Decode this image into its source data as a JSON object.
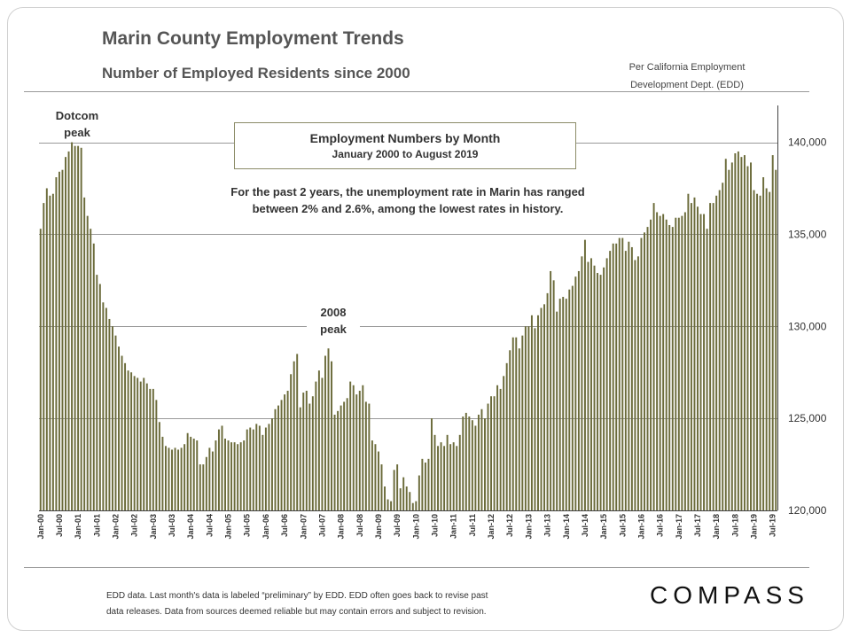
{
  "header": {
    "title": "Marin County Employment Trends",
    "subtitle": "Number of Employed  Residents since 2000",
    "source_line1": "Per California Employment",
    "source_line2": "Development Dept. (EDD)"
  },
  "annotations": {
    "box_title": "Employment Numbers by Month",
    "box_subtitle": "January 2000 to August 2019",
    "note_line1": "For the past 2 years, the unemployment rate in Marin has ranged",
    "note_line2": "between 2% and 2.6%, among the lowest rates in history.",
    "dotcom_line1": "Dotcom",
    "dotcom_line2": "peak",
    "peak2008_line1": "2008",
    "peak2008_line2": "peak"
  },
  "footer": {
    "line1": "EDD data. Last month's data is labeled “preliminary” by EDD. EDD often goes back to revise past",
    "line2": "data releases. Data from sources deemed reliable but may contain  errors and subject to revision.",
    "logo": "COMPASS"
  },
  "colors": {
    "bar": "#6b6b3a",
    "gridline": "#777777",
    "text": "#333333"
  },
  "chart_data": {
    "type": "bar",
    "title": "Employment Numbers by Month",
    "subtitle": "January 2000 to August 2019",
    "x_start": "Jan-00",
    "x_end": "Aug-19",
    "ylim": [
      120000,
      142000
    ],
    "y_ticks": [
      120000,
      125000,
      130000,
      135000,
      140000
    ],
    "y_tick_labels": [
      "120,000",
      "125,000",
      "130,000",
      "135,000",
      "140,000"
    ],
    "x_tick_labels": [
      "Jan-00",
      "Jul-00",
      "Jan-01",
      "Jul-01",
      "Jan-02",
      "Jul-02",
      "Jan-03",
      "Jul-03",
      "Jan-04",
      "Jul-04",
      "Jan-05",
      "Jul-05",
      "Jan-06",
      "Jul-06",
      "Jan-07",
      "Jul-07",
      "Jan-08",
      "Jul-08",
      "Jan-09",
      "Jul-09",
      "Jan-10",
      "Jul-10",
      "Jan-11",
      "Jul-11",
      "Jan-12",
      "Jul-12",
      "Jan-13",
      "Jul-13",
      "Jan-14",
      "Jul-14",
      "Jan-15",
      "Jul-15",
      "Jan-16",
      "Jul-16",
      "Jan-17",
      "Jul-17",
      "Jan-18",
      "Jul-18",
      "Jan-19",
      "Jul-19"
    ],
    "yearly_values": [
      [
        135300,
        136700,
        137500,
        137100,
        137200,
        138100,
        138400,
        138500,
        139200,
        139500,
        140000,
        139800
      ],
      [
        139800,
        139700,
        137000,
        136000,
        135300,
        134500,
        132800,
        132300,
        131300,
        131000,
        130400,
        130000
      ],
      [
        129500,
        128900,
        128400,
        128000,
        127600,
        127500,
        127300,
        127200,
        127000,
        127200,
        126900,
        126600
      ],
      [
        126600,
        126000,
        124800,
        124000,
        123500,
        123400,
        123300,
        123400,
        123300,
        123400,
        123600,
        124200
      ],
      [
        124000,
        123900,
        123800,
        122500,
        122500,
        122900,
        123400,
        123200,
        123800,
        124400,
        124600,
        123900
      ],
      [
        123800,
        123700,
        123700,
        123600,
        123700,
        123800,
        124400,
        124500,
        124400,
        124700,
        124600,
        124100
      ],
      [
        124500,
        124700,
        125000,
        125500,
        125700,
        126000,
        126300,
        126500,
        127400,
        128100,
        128500,
        125600
      ],
      [
        126400,
        126500,
        125800,
        126200,
        127000,
        127600,
        127200,
        128400,
        128800,
        128100,
        125200,
        125400
      ],
      [
        125700,
        125900,
        126100,
        127000,
        126800,
        126300,
        126500,
        126800,
        125900,
        125800,
        123800,
        123600
      ],
      [
        123200,
        122500,
        121300,
        120600,
        120500,
        122200,
        122500,
        121200,
        121800,
        121300,
        121000,
        120400
      ],
      [
        120500,
        121900,
        122800,
        122600,
        122800,
        125000,
        124100,
        123500,
        123700,
        123500,
        124100,
        123600
      ],
      [
        123700,
        123500,
        124100,
        125100,
        125300,
        125100,
        124900,
        124600,
        125200,
        125500,
        125000,
        125800
      ],
      [
        126200,
        126200,
        126800,
        126600,
        127300,
        128000,
        128700,
        129400,
        129400,
        128800,
        129500,
        130000
      ],
      [
        130000,
        130600,
        129900,
        130600,
        131000,
        131200,
        131800,
        133000,
        132500,
        130800,
        131500,
        131600
      ],
      [
        131500,
        132000,
        132200,
        132700,
        133000,
        133800,
        134700,
        133500,
        133700,
        133300,
        132900,
        132800
      ],
      [
        133200,
        133700,
        134100,
        134500,
        134500,
        134800,
        134800,
        134100,
        134600,
        134300,
        133600,
        133800
      ],
      [
        134800,
        135100,
        135400,
        135800,
        136700,
        136200,
        136000,
        136100,
        135800,
        135500,
        135400,
        135900
      ],
      [
        135900,
        136000,
        136200,
        137200,
        136700,
        137000,
        136500,
        136100,
        136100,
        135300,
        136700,
        136700
      ],
      [
        137100,
        137400,
        137800,
        139100,
        138500,
        138900,
        139400,
        139500,
        139200,
        139300,
        138700,
        138900
      ],
      [
        137400,
        137200,
        137100,
        138100,
        137500,
        137300,
        139300,
        138500
      ]
    ]
  }
}
